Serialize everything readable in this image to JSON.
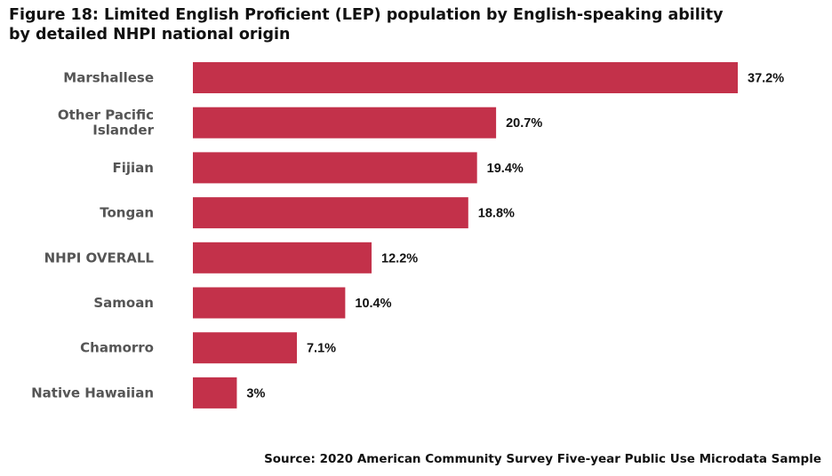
{
  "title_line1": "Figure 18: Limited English Proficient (LEP) population by English-speaking ability",
  "title_line2": "by detailed NHPI national origin",
  "source": "Source: 2020 American Community Survey Five-year Public Use Microdata Sample",
  "colors": {
    "bar": "#c3314a"
  },
  "chart_data": {
    "type": "bar",
    "orientation": "horizontal",
    "title": "Figure 18: Limited English Proficient (LEP) population by English-speaking ability by detailed NHPI national origin",
    "xlabel": "",
    "ylabel": "",
    "categories": [
      [
        "Marshallese"
      ],
      [
        "Other Pacific",
        "Islander"
      ],
      [
        "Fijian"
      ],
      [
        "Tongan"
      ],
      [
        "NHPI OVERALL"
      ],
      [
        "Samoan"
      ],
      [
        "Chamorro"
      ],
      [
        "Native Hawaiian"
      ]
    ],
    "values": [
      37.2,
      20.7,
      19.4,
      18.8,
      12.2,
      10.4,
      7.1,
      3
    ],
    "value_labels": [
      "37.2%",
      "20.7%",
      "19.4%",
      "18.8%",
      "12.2%",
      "10.4%",
      "7.1%",
      "3%"
    ],
    "xlim": [
      0,
      37.2
    ],
    "grid": false,
    "legend": "none"
  }
}
